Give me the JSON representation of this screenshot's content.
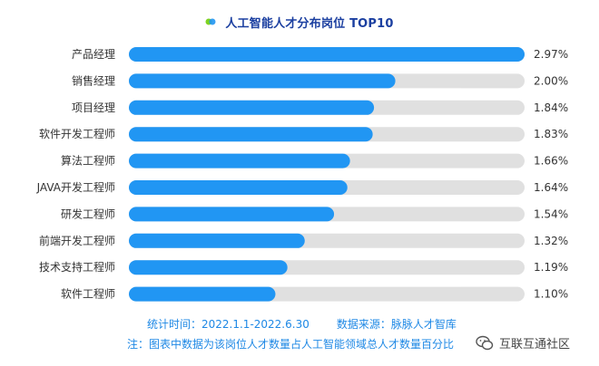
{
  "chart_data": {
    "type": "bar",
    "orientation": "horizontal",
    "title": "人工智能人才分布岗位 TOP10",
    "categories": [
      "产品经理",
      "销售经理",
      "项目经理",
      "软件开发工程师",
      "算法工程师",
      "JAVA开发工程师",
      "研发工程师",
      "前端开发工程师",
      "技术支持工程师",
      "软件工程师"
    ],
    "values": [
      2.97,
      2.0,
      1.84,
      1.83,
      1.66,
      1.64,
      1.54,
      1.32,
      1.19,
      1.1
    ],
    "value_labels": [
      "2.97%",
      "2.00%",
      "1.84%",
      "1.83%",
      "1.66%",
      "1.64%",
      "1.54%",
      "1.32%",
      "1.19%",
      "1.10%"
    ],
    "xlim": [
      0,
      2.97
    ],
    "grid": false,
    "legend": "none",
    "colors": {
      "bar": "#2196f3",
      "track": "#e0e0e0",
      "title": "#1b3fa0",
      "footer": "#1e88e5"
    }
  },
  "footer": {
    "period": "统计时间：2022.1.1-2022.6.30",
    "source": "数据来源：脉脉人才智库",
    "note": "注：图表中数据为该岗位人才数量占人工智能领域总人才数量百分比"
  },
  "watermark": {
    "text": "互联互通社区",
    "icon": "wechat-icon"
  }
}
